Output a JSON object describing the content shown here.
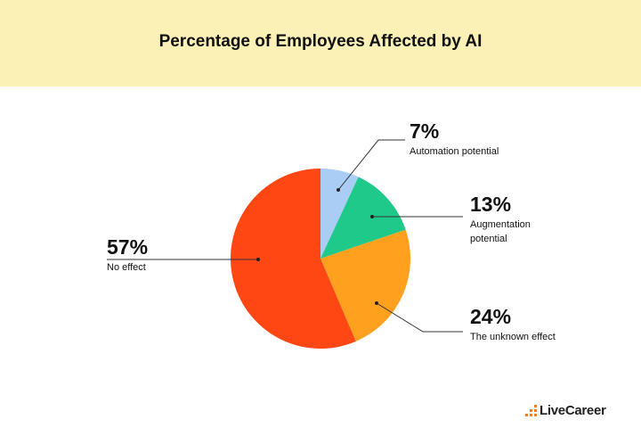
{
  "chart_data": {
    "type": "pie",
    "title": "Percentage of Employees Affected by AI",
    "categories": [
      "Automation potential",
      "Augmentation potential",
      "The unknown effect",
      "No effect"
    ],
    "values": [
      7,
      13,
      24,
      57
    ],
    "value_labels": [
      "7%",
      "13%",
      "24%",
      "57%"
    ],
    "colors": [
      "#a9cdf5",
      "#1fc98a",
      "#ffa11f",
      "#ff4713"
    ],
    "brand": "LiveCareer"
  }
}
